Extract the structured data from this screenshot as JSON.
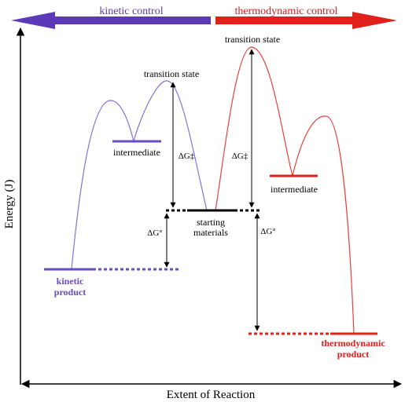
{
  "header": {
    "kinetic_control": "kinetic control",
    "thermodynamic_control": "thermodynamic control"
  },
  "axes": {
    "y_label": "Energy (J)",
    "x_label": "Extent of Reaction"
  },
  "labels": {
    "transition_state_kinetic": "transition state",
    "transition_state_thermo": "transition state",
    "intermediate_kinetic": "intermediate",
    "intermediate_thermo": "intermediate",
    "starting_materials_line1": "starting",
    "starting_materials_line2": "materials",
    "kinetic_product_line1": "kinetic",
    "kinetic_product_line2": "product",
    "thermo_product_line1": "thermodynamic",
    "thermo_product_line2": "product",
    "dg_activation_kinetic": "ΔG‡",
    "dg_activation_thermo": "ΔG‡",
    "dg_standard_kinetic": "ΔG°",
    "dg_standard_thermo": "ΔG°"
  },
  "colors": {
    "kinetic": "#6a4bc4",
    "kinetic_arrow": "#5b3ab8",
    "thermo": "#e0201a",
    "thermo_arrow": "#e0201a",
    "black": "#000000"
  }
}
